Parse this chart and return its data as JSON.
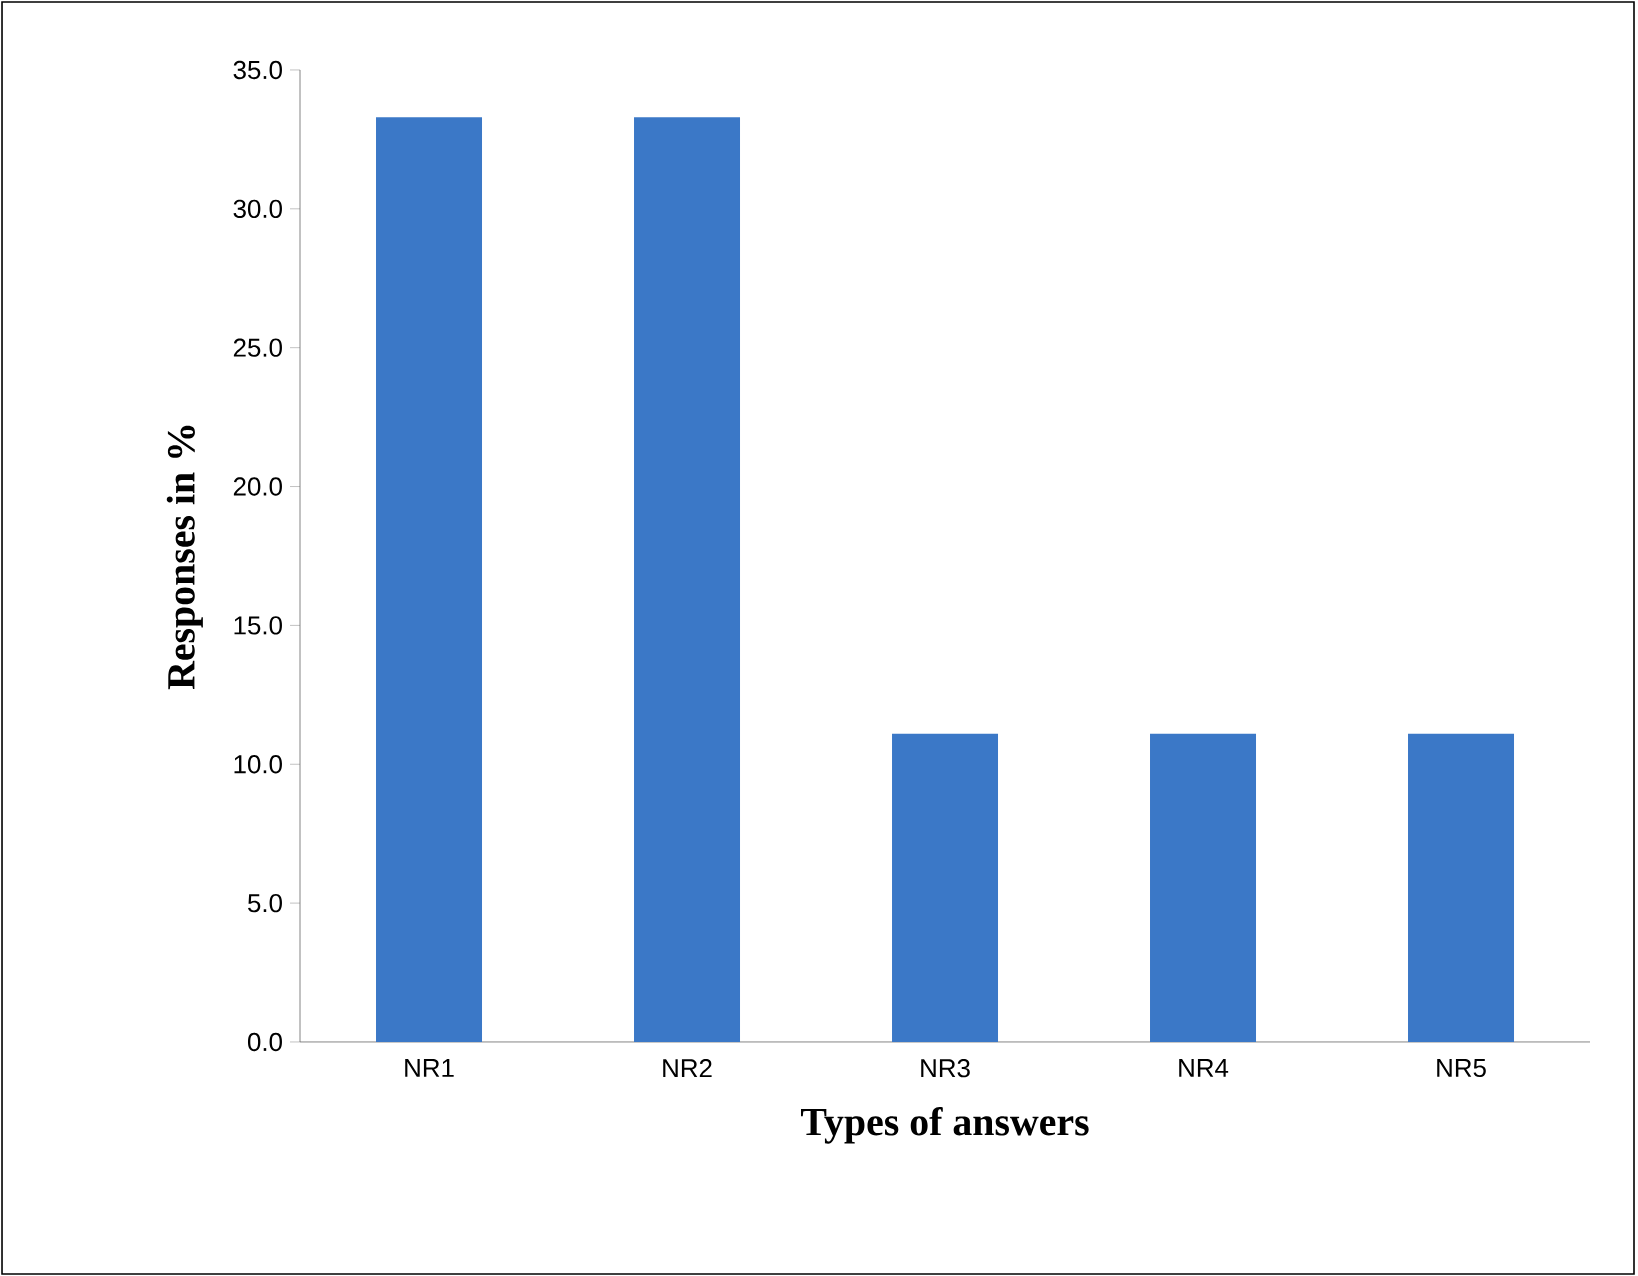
{
  "chart_data": {
    "type": "bar",
    "xlabel": "Types of answers",
    "ylabel": "Responses in %",
    "categories": [
      "NR1",
      "NR2",
      "NR3",
      "NR4",
      "NR5"
    ],
    "values": [
      33.3,
      33.3,
      11.1,
      11.1,
      11.1
    ],
    "color": "#3b78c7",
    "ylim": [
      0,
      35
    ],
    "yticks": [
      {
        "value": 0,
        "label": "0.0"
      },
      {
        "value": 5,
        "label": "5.0"
      },
      {
        "value": 10,
        "label": "10.0"
      },
      {
        "value": 15,
        "label": "15.0"
      },
      {
        "value": 20,
        "label": "20.0"
      },
      {
        "value": 25,
        "label": "25.0"
      },
      {
        "value": 30,
        "label": "30.0"
      },
      {
        "value": 35,
        "label": "35.0"
      }
    ],
    "grid": false
  }
}
